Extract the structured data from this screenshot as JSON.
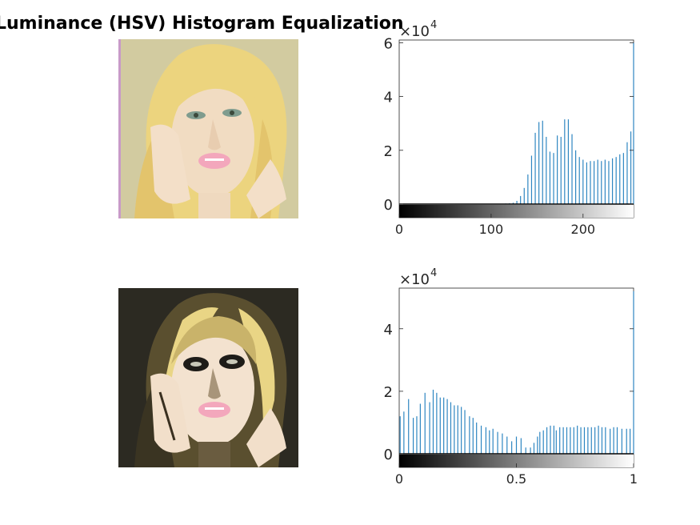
{
  "figure": {
    "title": "Luminance (HSV) Histogram Equalization"
  },
  "colors": {
    "bar": "#2e86c1",
    "axis": "#262626",
    "original_background": "#d2cba0",
    "original_hair": "#ecd47e",
    "original_skin": "#f1dcc2",
    "equalized_background": "#2c2a22",
    "equalized_hair": "#e9d585",
    "equalized_skin": "#f3e2cf",
    "lips": "#f3a7bc"
  },
  "chart_data": [
    {
      "type": "bar",
      "name": "histogram-original",
      "multiplier_label": "×10",
      "multiplier_exp": "4",
      "xlim": [
        0,
        255
      ],
      "ylim": [
        -0.5,
        6.1
      ],
      "yticks": [
        0,
        2,
        4,
        6
      ],
      "ytick_labels": [
        "0",
        "2",
        "4",
        "6"
      ],
      "xticks": [
        0,
        100,
        200
      ],
      "xtick_labels": [
        "0",
        "100",
        "200"
      ],
      "colorbar": "grayscale",
      "x": [
        112,
        116,
        120,
        124,
        128,
        132,
        136,
        140,
        144,
        148,
        152,
        156,
        160,
        164,
        168,
        172,
        176,
        180,
        184,
        188,
        192,
        196,
        200,
        204,
        208,
        212,
        216,
        220,
        224,
        228,
        232,
        236,
        240,
        244,
        248,
        252,
        255
      ],
      "values": [
        0.01,
        0.02,
        0.03,
        0.05,
        0.12,
        0.3,
        0.6,
        1.1,
        1.8,
        2.65,
        3.05,
        3.1,
        2.5,
        1.95,
        1.9,
        2.55,
        2.5,
        3.15,
        3.15,
        2.6,
        2.0,
        1.75,
        1.65,
        1.55,
        1.6,
        1.6,
        1.65,
        1.6,
        1.65,
        1.6,
        1.7,
        1.75,
        1.85,
        1.9,
        2.3,
        2.7,
        6.0
      ]
    },
    {
      "type": "bar",
      "name": "histogram-equalized",
      "multiplier_label": "×10",
      "multiplier_exp": "4",
      "xlim": [
        0,
        1
      ],
      "ylim": [
        -0.5,
        5.3
      ],
      "yticks": [
        0,
        2,
        4
      ],
      "ytick_labels": [
        "0",
        "2",
        "4"
      ],
      "xticks": [
        0,
        0.5,
        1
      ],
      "xtick_labels": [
        "0",
        "0.5",
        "1"
      ],
      "colorbar": "grayscale",
      "x": [
        0.004,
        0.02,
        0.04,
        0.06,
        0.075,
        0.09,
        0.11,
        0.13,
        0.145,
        0.16,
        0.175,
        0.19,
        0.205,
        0.22,
        0.235,
        0.25,
        0.265,
        0.28,
        0.3,
        0.315,
        0.33,
        0.35,
        0.37,
        0.385,
        0.4,
        0.42,
        0.44,
        0.46,
        0.48,
        0.5,
        0.52,
        0.54,
        0.56,
        0.575,
        0.59,
        0.6,
        0.615,
        0.63,
        0.645,
        0.66,
        0.67,
        0.685,
        0.7,
        0.715,
        0.73,
        0.745,
        0.76,
        0.775,
        0.79,
        0.805,
        0.82,
        0.835,
        0.85,
        0.865,
        0.88,
        0.9,
        0.915,
        0.93,
        0.95,
        0.97,
        0.985,
        1.0
      ],
      "values": [
        1.2,
        1.35,
        1.75,
        1.15,
        1.2,
        1.6,
        1.95,
        1.65,
        2.05,
        1.95,
        1.8,
        1.8,
        1.75,
        1.65,
        1.55,
        1.55,
        1.5,
        1.4,
        1.2,
        1.15,
        1.0,
        0.9,
        0.85,
        0.75,
        0.8,
        0.7,
        0.65,
        0.55,
        0.4,
        0.55,
        0.5,
        0.2,
        0.2,
        0.35,
        0.55,
        0.7,
        0.75,
        0.85,
        0.9,
        0.9,
        0.75,
        0.85,
        0.85,
        0.85,
        0.85,
        0.85,
        0.9,
        0.85,
        0.85,
        0.85,
        0.85,
        0.85,
        0.9,
        0.85,
        0.85,
        0.8,
        0.85,
        0.85,
        0.8,
        0.8,
        0.8,
        5.2
      ]
    }
  ]
}
